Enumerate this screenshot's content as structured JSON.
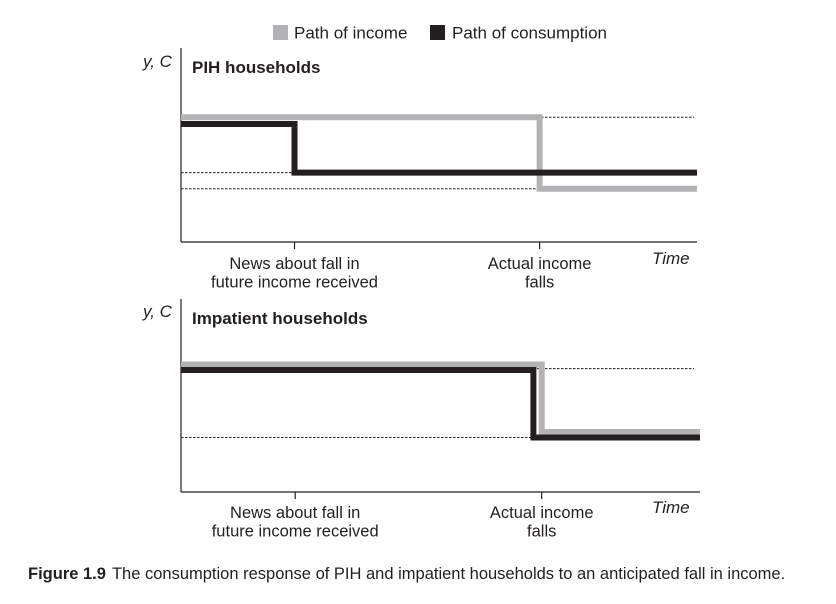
{
  "legend": {
    "items": [
      {
        "label": "Path of income",
        "color": "#b3b3b5"
      },
      {
        "label": "Path of consumption",
        "color": "#231f20"
      }
    ]
  },
  "caption": {
    "label": "Figure 1.9",
    "text": "The consumption response of PIH and impatient households to an anticipated fall in income."
  },
  "chart_data": [
    {
      "type": "line",
      "title": "PIH households",
      "ylabel": "y, C",
      "xlabel": "Time",
      "ylim": [
        0,
        1
      ],
      "xlim": [
        0,
        1
      ],
      "grid": false,
      "x_ticks": [
        {
          "x": 0.22,
          "label_lines": [
            "News about fall in",
            "future income received"
          ]
        },
        {
          "x": 0.695,
          "label_lines": [
            "Actual income",
            "falls"
          ]
        }
      ],
      "reference_lines": [
        0.85,
        0.44,
        0.32
      ],
      "series": [
        {
          "name": "Path of income",
          "color": "#b3b3b5",
          "x": [
            0,
            0.695,
            0.695,
            1
          ],
          "y": [
            0.85,
            0.85,
            0.32,
            0.32
          ]
        },
        {
          "name": "Path of consumption",
          "color": "#231f20",
          "x": [
            0,
            0.22,
            0.22,
            1
          ],
          "y": [
            0.8,
            0.8,
            0.44,
            0.44
          ]
        }
      ]
    },
    {
      "type": "line",
      "title": "Impatient households",
      "ylabel": "y, C",
      "xlabel": "Time",
      "ylim": [
        0,
        1
      ],
      "xlim": [
        0,
        1
      ],
      "grid": false,
      "x_ticks": [
        {
          "x": 0.22,
          "label_lines": [
            "News about fall in",
            "future income received"
          ]
        },
        {
          "x": 0.695,
          "label_lines": [
            "Actual income",
            "falls"
          ]
        }
      ],
      "reference_lines": [
        0.84,
        0.33
      ],
      "series": [
        {
          "name": "Path of income",
          "color": "#b3b3b5",
          "x": [
            0,
            0.695,
            0.695,
            1
          ],
          "y": [
            0.87,
            0.87,
            0.37,
            0.37
          ]
        },
        {
          "name": "Path of consumption",
          "color": "#231f20",
          "x": [
            0,
            0.679,
            0.679,
            1
          ],
          "y": [
            0.83,
            0.83,
            0.33,
            0.33
          ]
        }
      ]
    }
  ]
}
